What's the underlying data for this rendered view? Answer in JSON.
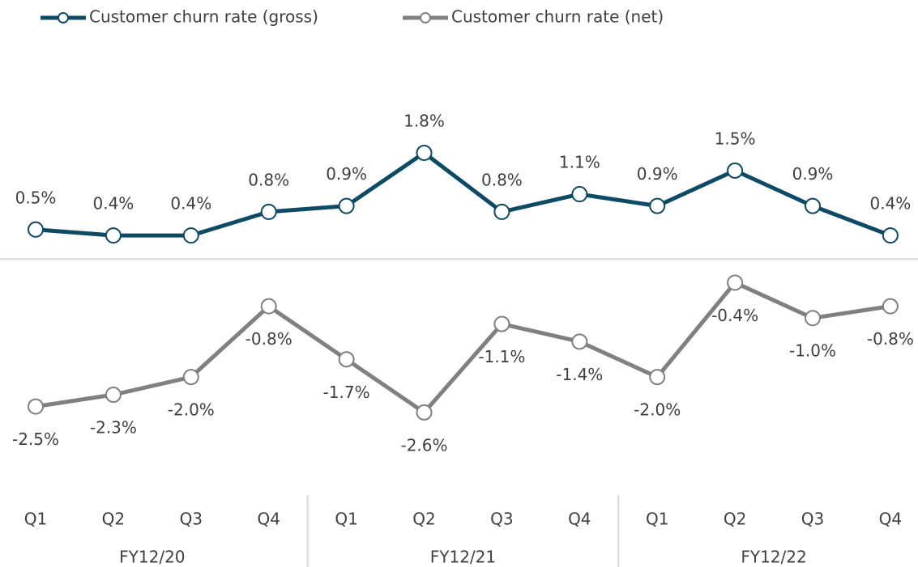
{
  "chart_data": {
    "type": "line",
    "categories": [
      "Q1",
      "Q2",
      "Q3",
      "Q4",
      "Q1",
      "Q2",
      "Q3",
      "Q4",
      "Q1",
      "Q2",
      "Q3",
      "Q4"
    ],
    "groups": [
      "FY12/20",
      "FY12/21",
      "FY12/22"
    ],
    "ylim": [
      -4,
      3.5
    ],
    "legend": "top-left",
    "series": [
      {
        "name": "Customer churn rate (gross)",
        "color": "#0d4a66",
        "values": [
          0.5,
          0.4,
          0.4,
          0.8,
          0.9,
          1.8,
          0.8,
          1.1,
          0.9,
          1.5,
          0.9,
          0.4
        ],
        "value_labels": [
          "0.5%",
          "0.4%",
          "0.4%",
          "0.8%",
          "0.9%",
          "1.8%",
          "0.8%",
          "1.1%",
          "0.9%",
          "1.5%",
          "0.9%",
          "0.4%"
        ]
      },
      {
        "name": "Customer churn rate (net)",
        "color": "#808080",
        "values": [
          -2.5,
          -2.3,
          -2.0,
          -0.8,
          -1.7,
          -2.6,
          -1.1,
          -1.4,
          -2.0,
          -0.4,
          -1.0,
          -0.8
        ],
        "value_labels": [
          "-2.5%",
          "-2.3%",
          "-2.0%",
          "-0.8%",
          "-1.7%",
          "-2.6%",
          "-1.1%",
          "-1.4%",
          "-2.0%",
          "-0.4%",
          "-1.0%",
          "-0.8%"
        ]
      }
    ]
  }
}
